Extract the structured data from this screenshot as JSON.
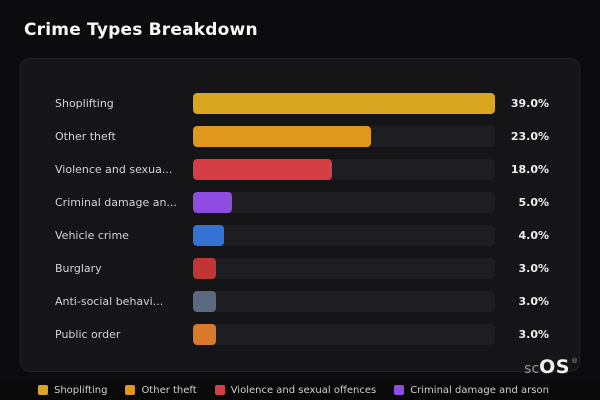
{
  "page": {
    "title": "Crime Types Breakdown"
  },
  "chart_data": {
    "type": "bar",
    "orientation": "horizontal",
    "title": "Crime Types Breakdown",
    "unit": "%",
    "xlim": [
      0,
      39
    ],
    "grid": false,
    "legend_position": "bottom",
    "categories": [
      "Shoplifting",
      "Other theft",
      "Violence and sexual offences",
      "Criminal damage and arson",
      "Vehicle crime",
      "Burglary",
      "Anti-social behaviour",
      "Public order"
    ],
    "values": [
      39.0,
      23.0,
      18.0,
      5.0,
      4.0,
      3.0,
      3.0,
      3.0
    ],
    "rows": [
      {
        "label": "Shoplifting",
        "value": 39,
        "display": "39.0%",
        "color": "#d9a621"
      },
      {
        "label": "Other theft",
        "value": 23,
        "display": "23.0%",
        "color": "#e0981c"
      },
      {
        "label": "Violence and sexua...",
        "value": 18,
        "display": "18.0%",
        "color": "#d63e46"
      },
      {
        "label": "Criminal damage an...",
        "value": 5,
        "display": "5.0%",
        "color": "#8e4ce0"
      },
      {
        "label": "Vehicle crime",
        "value": 4,
        "display": "4.0%",
        "color": "#3572d4"
      },
      {
        "label": "Burglary",
        "value": 3,
        "display": "3.0%",
        "color": "#c23535"
      },
      {
        "label": "Anti-social behavi...",
        "value": 3,
        "display": "3.0%",
        "color": "#5b6980"
      },
      {
        "label": "Public order",
        "value": 3,
        "display": "3.0%",
        "color": "#d97a2a"
      }
    ]
  },
  "legend": {
    "items": [
      {
        "label": "Shoplifting",
        "color": "#d9a621"
      },
      {
        "label": "Other theft",
        "color": "#e0981c"
      },
      {
        "label": "Violence and sexual offences",
        "color": "#d63e46"
      },
      {
        "label": "Criminal damage and arson",
        "color": "#8e4ce0"
      }
    ]
  },
  "logo": {
    "prefix": "sc",
    "main": "OS",
    "registered": "®"
  }
}
